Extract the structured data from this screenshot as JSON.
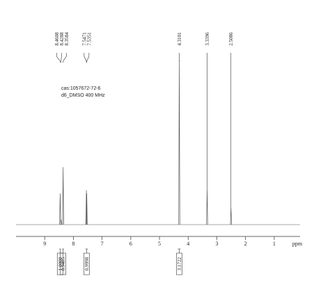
{
  "chart_data": {
    "type": "nmr",
    "annotations": [
      "cas:1057672-72-6",
      "d6_DMSO  400  MHz"
    ],
    "x": [
      8.4608,
      8.4288,
      8.3584,
      7.5471,
      7.5351,
      4.3101,
      3.3396,
      2.5086
    ],
    "values": [
      19,
      3,
      35,
      21,
      19,
      100,
      22,
      11
    ],
    "color": "#555555",
    "xlim": [
      10,
      0.1
    ],
    "xticks": [
      9,
      8,
      7,
      6,
      5,
      4,
      3,
      2,
      1
    ],
    "xlabel": "ppm",
    "ylim": [
      0,
      100
    ],
    "integrals": [
      {
        "from": 8.49,
        "to": 8.44,
        "value": {
          "value": 1,
          "label": "1.0000"
        }
      },
      {
        "from": 8.39,
        "to": 8.33,
        "value": 0.9405
      },
      {
        "from": 7.58,
        "to": 7.5,
        "value": 0.9998
      },
      {
        "from": 4.36,
        "to": 4.26,
        "value": 3.1722
      }
    ]
  }
}
